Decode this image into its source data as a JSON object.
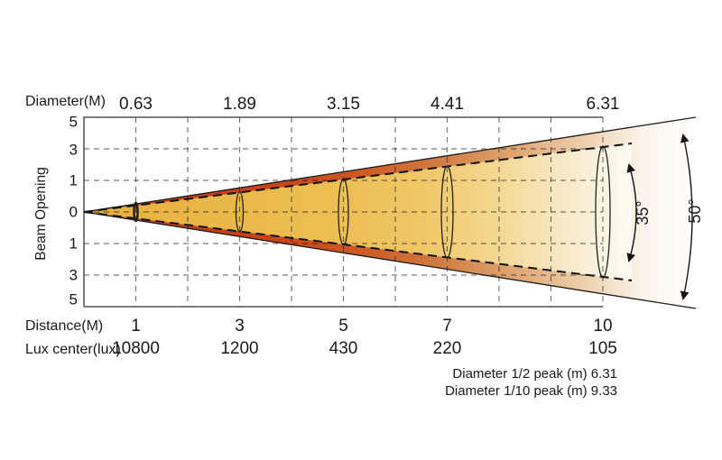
{
  "chart_data": {
    "type": "area",
    "subtype": "photometric-beam-cone",
    "y_axis_label": "Beam Opening",
    "y_ticks": [
      "5",
      "3",
      "1",
      "0",
      "1",
      "3",
      "5"
    ],
    "distances_m": [
      1,
      3,
      5,
      7,
      10
    ],
    "rows": {
      "diameter": {
        "label": "Diameter(M)",
        "values": [
          "0.63",
          "1.89",
          "3.15",
          "4.41",
          "6.31"
        ]
      },
      "distance": {
        "label": "Distance(M)",
        "values": [
          "1",
          "3",
          "5",
          "7",
          "10"
        ]
      },
      "lux": {
        "label": "Lux center(lux)",
        "values": [
          "10800",
          "1200",
          "430",
          "220",
          "105"
        ]
      }
    },
    "beam_angle": {
      "label": "35°",
      "value_deg": 35
    },
    "field_angle": {
      "label": "50°",
      "value_deg": 50
    },
    "footnotes": [
      "Diameter 1/2 peak (m) 6.31",
      "Diameter 1/10 peak (m) 9.33"
    ],
    "layout_hints": {
      "grid": "dashed",
      "beam_vertex": "left-center",
      "angle_arcs": "right"
    },
    "colors": {
      "beam_core_gold": "#ecbe52",
      "beam_outer_band": "#c94217",
      "beam_fade": "#f8e9c8",
      "grid_dash": "#6e6e6e",
      "text": "#1a1a1a"
    }
  }
}
